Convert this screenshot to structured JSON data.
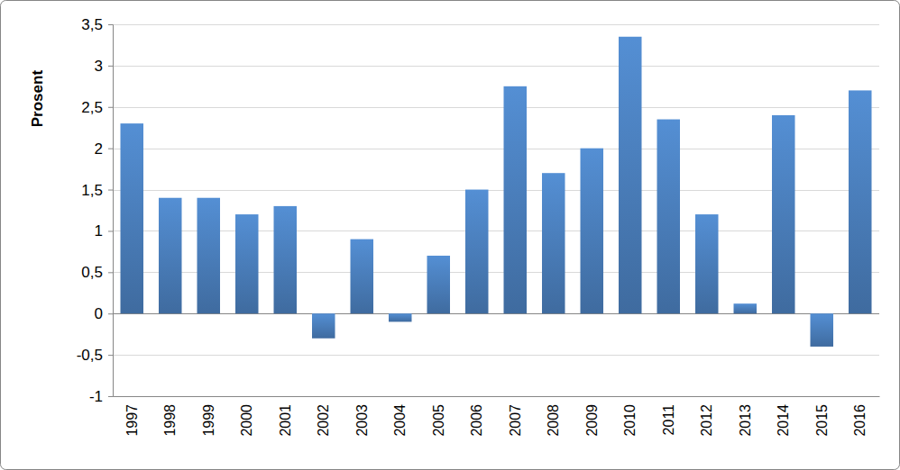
{
  "chart_data": {
    "type": "bar",
    "ylabel": "Prosent",
    "categories": [
      "1997",
      "1998",
      "1999",
      "2000",
      "2001",
      "2002",
      "2003",
      "2004",
      "2005",
      "2006",
      "2007",
      "2008",
      "2009",
      "2010",
      "2011",
      "2012",
      "2013",
      "2014",
      "2015",
      "2016"
    ],
    "values": [
      2.3,
      1.4,
      1.4,
      1.2,
      1.3,
      -0.3,
      0.9,
      -0.1,
      0.7,
      1.5,
      2.75,
      1.7,
      2.0,
      3.35,
      2.35,
      1.2,
      0.12,
      2.4,
      -0.4,
      2.7
    ],
    "color": "#4a7ebb",
    "ylim": [
      -1,
      3.5
    ],
    "yticks": [
      -1,
      {
        "value": -0.5,
        "label": "-0,5"
      },
      0,
      {
        "value": 0.5,
        "label": "0,5"
      },
      1,
      {
        "value": 1.5,
        "label": "1,5"
      },
      2,
      {
        "value": 2.5,
        "label": "2,5"
      },
      3,
      {
        "value": 3.5,
        "label": "3,5"
      }
    ],
    "grid": true
  }
}
